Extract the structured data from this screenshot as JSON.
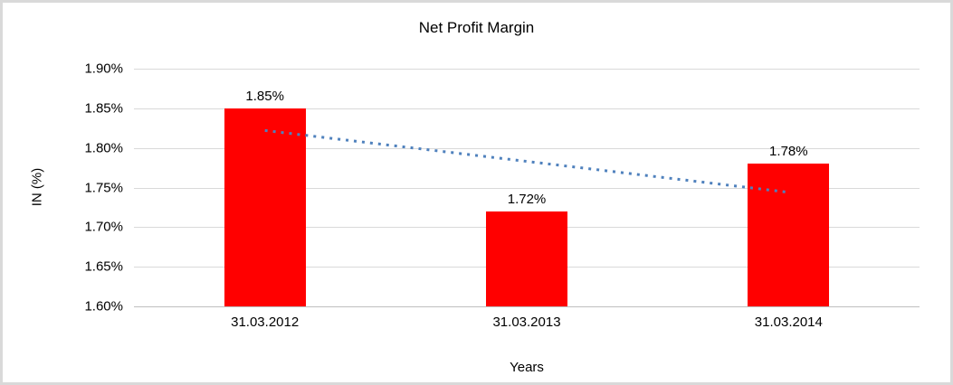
{
  "chart_data": {
    "type": "bar",
    "title": "Net Profit Margin",
    "xlabel": "Years",
    "ylabel": "IN (%)",
    "categories": [
      "31.03.2012",
      "31.03.2013",
      "31.03.2014"
    ],
    "values": [
      1.85,
      1.72,
      1.78
    ],
    "value_labels": [
      "1.85%",
      "1.72%",
      "1.78%"
    ],
    "ylim": [
      1.6,
      1.9
    ],
    "ytick_step": 0.05,
    "ytick_labels": [
      "1.90%",
      "1.85%",
      "1.80%",
      "1.75%",
      "1.70%",
      "1.65%",
      "1.60%"
    ],
    "grid": true,
    "legend": false,
    "bar_color": "#ff0000",
    "gridline_color": "#d9d9d9",
    "trendline": {
      "style": "dotted",
      "color": "#4f81bd",
      "start_value": 1.822,
      "end_value": 1.744
    }
  }
}
